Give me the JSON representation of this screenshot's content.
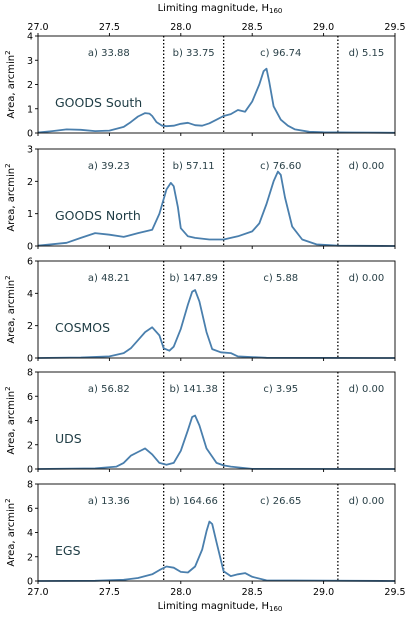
{
  "chart_data": {
    "type": "line",
    "x_axis": {
      "label_top": "Limiting magnitude, H",
      "label_bottom": "Limiting magnitude, H",
      "label_subscript": "160",
      "range": [
        27.0,
        29.5
      ],
      "ticks": [
        "27.0",
        "27.5",
        "28.0",
        "28.5",
        "29.0",
        "29.5"
      ]
    },
    "y_label": "Area, arcmin",
    "y_label_superscript": "2",
    "dividers": [
      27.88,
      28.3,
      29.1
    ],
    "line_color": "#4a7fad",
    "panels": [
      {
        "field": "GOODS South",
        "ylim": [
          0,
          4
        ],
        "yticks": [
          "0",
          "1",
          "2",
          "3",
          "4"
        ],
        "regions": [
          "a) 33.88",
          "b) 33.75",
          "c) 96.74",
          "d) 5.15"
        ],
        "x": [
          27.0,
          27.1,
          27.2,
          27.3,
          27.4,
          27.5,
          27.6,
          27.65,
          27.7,
          27.75,
          27.78,
          27.8,
          27.83,
          27.87,
          27.9,
          27.95,
          28.0,
          28.05,
          28.1,
          28.15,
          28.2,
          28.25,
          28.3,
          28.35,
          28.4,
          28.45,
          28.5,
          28.55,
          28.58,
          28.6,
          28.62,
          28.65,
          28.7,
          28.75,
          28.8,
          28.9,
          29.0,
          29.2,
          29.5
        ],
        "y": [
          0.02,
          0.08,
          0.15,
          0.13,
          0.08,
          0.1,
          0.25,
          0.45,
          0.68,
          0.82,
          0.8,
          0.7,
          0.45,
          0.3,
          0.28,
          0.3,
          0.38,
          0.42,
          0.32,
          0.3,
          0.4,
          0.55,
          0.7,
          0.78,
          0.95,
          0.88,
          1.3,
          2.0,
          2.55,
          2.65,
          2.1,
          1.1,
          0.55,
          0.3,
          0.15,
          0.05,
          0.03,
          0.02,
          0.01
        ]
      },
      {
        "field": "GOODS North",
        "ylim": [
          0,
          3
        ],
        "yticks": [
          "0",
          "1",
          "2",
          "3"
        ],
        "regions": [
          "a) 39.23",
          "b) 57.11",
          "c) 76.60",
          "d) 0.00"
        ],
        "x": [
          27.0,
          27.2,
          27.3,
          27.4,
          27.5,
          27.6,
          27.7,
          27.8,
          27.85,
          27.9,
          27.93,
          27.95,
          27.98,
          28.0,
          28.05,
          28.1,
          28.2,
          28.3,
          28.4,
          28.5,
          28.55,
          28.6,
          28.65,
          28.68,
          28.7,
          28.73,
          28.78,
          28.85,
          28.95,
          29.1,
          29.5
        ],
        "y": [
          0.01,
          0.1,
          0.25,
          0.4,
          0.35,
          0.28,
          0.4,
          0.5,
          1.0,
          1.75,
          1.95,
          1.85,
          1.2,
          0.55,
          0.3,
          0.25,
          0.2,
          0.2,
          0.3,
          0.45,
          0.7,
          1.3,
          2.0,
          2.3,
          2.2,
          1.5,
          0.6,
          0.2,
          0.05,
          0.01,
          0.0
        ]
      },
      {
        "field": "COSMOS",
        "ylim": [
          0,
          6
        ],
        "yticks": [
          "0",
          "2",
          "4",
          "6"
        ],
        "regions": [
          "a) 48.21",
          "b) 147.89",
          "c) 5.88",
          "d) 0.00"
        ],
        "x": [
          27.0,
          27.3,
          27.5,
          27.6,
          27.65,
          27.7,
          27.75,
          27.8,
          27.85,
          27.88,
          27.92,
          27.95,
          28.0,
          28.05,
          28.08,
          28.1,
          28.13,
          28.18,
          28.22,
          28.28,
          28.35,
          28.4,
          28.6,
          29.5
        ],
        "y": [
          0.0,
          0.03,
          0.1,
          0.3,
          0.6,
          1.1,
          1.6,
          1.9,
          1.4,
          0.6,
          0.45,
          0.7,
          1.8,
          3.3,
          4.1,
          4.2,
          3.5,
          1.6,
          0.55,
          0.35,
          0.3,
          0.1,
          0.01,
          0.0
        ]
      },
      {
        "field": "UDS",
        "ylim": [
          0,
          8
        ],
        "yticks": [
          "0",
          "2",
          "4",
          "6",
          "8"
        ],
        "regions": [
          "a) 56.82",
          "b) 141.38",
          "c) 3.95",
          "d) 0.00"
        ],
        "x": [
          27.0,
          27.4,
          27.55,
          27.6,
          27.65,
          27.7,
          27.75,
          27.8,
          27.85,
          27.9,
          27.95,
          28.0,
          28.05,
          28.08,
          28.1,
          28.13,
          28.18,
          28.25,
          28.3,
          28.35,
          28.5,
          29.5
        ],
        "y": [
          0.0,
          0.05,
          0.2,
          0.5,
          1.1,
          1.4,
          1.7,
          1.2,
          0.5,
          0.35,
          0.5,
          1.5,
          3.2,
          4.3,
          4.4,
          3.6,
          1.7,
          0.5,
          0.3,
          0.2,
          0.01,
          0.0
        ]
      },
      {
        "field": "EGS",
        "ylim": [
          0,
          8
        ],
        "yticks": [
          "0",
          "2",
          "4",
          "6",
          "8"
        ],
        "regions": [
          "a) 13.36",
          "b) 164.66",
          "c) 26.65",
          "d) 0.00"
        ],
        "x": [
          27.0,
          27.4,
          27.6,
          27.7,
          27.8,
          27.85,
          27.9,
          27.95,
          28.0,
          28.05,
          28.1,
          28.15,
          28.18,
          28.2,
          28.22,
          28.25,
          28.3,
          28.35,
          28.4,
          28.45,
          28.5,
          28.6,
          29.5
        ],
        "y": [
          0.0,
          0.02,
          0.1,
          0.25,
          0.55,
          0.9,
          1.2,
          1.1,
          0.75,
          0.7,
          1.2,
          2.6,
          4.1,
          4.9,
          4.7,
          3.2,
          0.8,
          0.4,
          0.55,
          0.65,
          0.35,
          0.05,
          0.0
        ]
      }
    ]
  }
}
